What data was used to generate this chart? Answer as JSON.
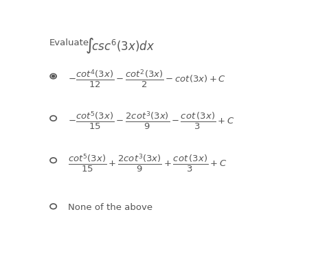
{
  "background_color": "#ffffff",
  "text_color": "#555555",
  "radio_color": "#555555",
  "evaluate_text": "Evaluate",
  "integral_text": "$\\int\\!csc^6(3x)dx$",
  "opt1_formula": "$-\\dfrac{cot^4(3x)}{12} - \\dfrac{cot^2(3x)}{2} - cot(3x) + C$",
  "opt2_formula": "$-\\dfrac{cot^5(3x)}{15} - \\dfrac{2cot^3(3x)}{9} - \\dfrac{cot\\,(3x)}{3} + C$",
  "opt3_formula": "$\\dfrac{cot^5(3x)}{15} + \\dfrac{2cot^3(3x)}{9} + \\dfrac{cot\\,(3x)}{3} + C$",
  "opt4_text": "None of the above",
  "evaluate_fs": 9.5,
  "integral_fs": 12,
  "formula_fs": 9.5,
  "radio_outer": 0.013,
  "radio_inner_white": 0.008,
  "radio_inner_dot": 0.006,
  "radio_empty": 0.013
}
